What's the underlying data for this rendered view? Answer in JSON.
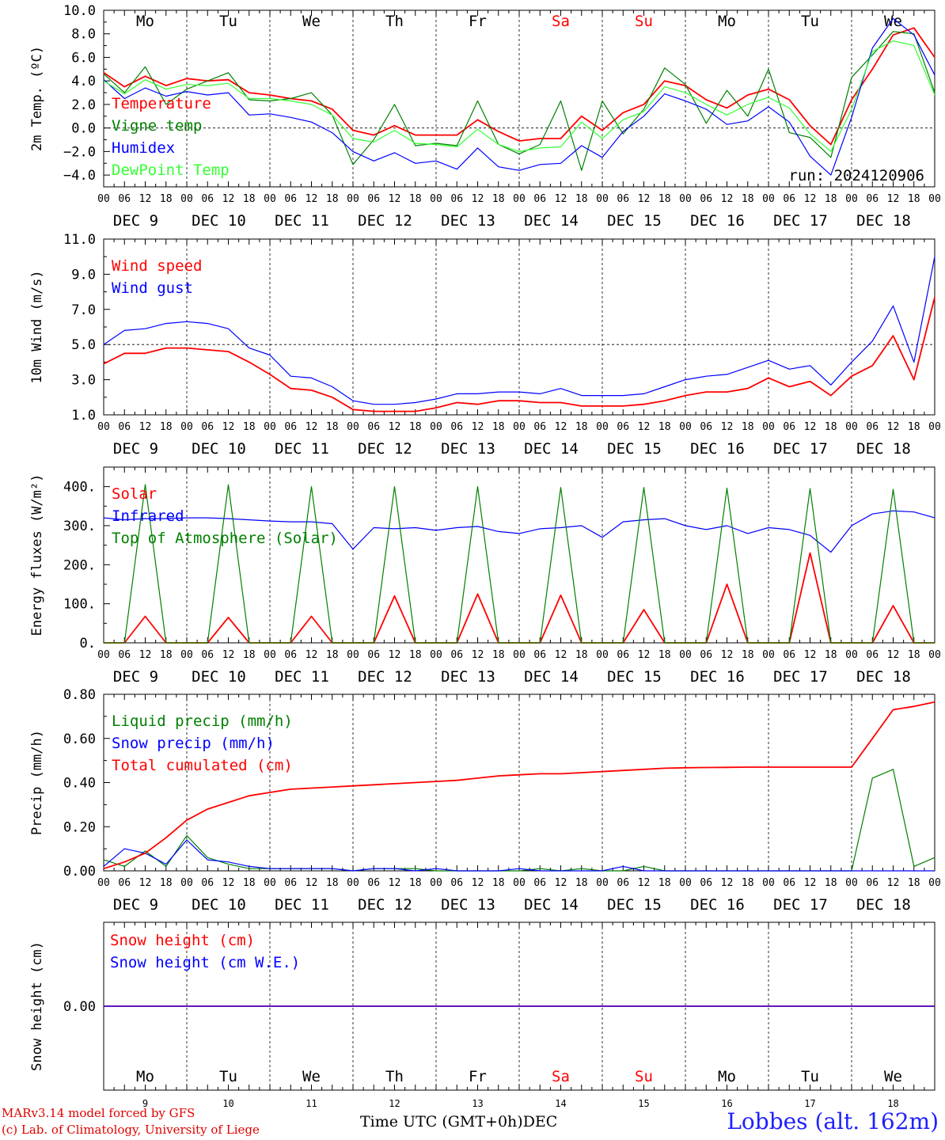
{
  "page": {
    "credit_line1": "MARv3.14 model forced by GFS",
    "credit_line2": "(c) Lab. of Climatology, University of Liege",
    "time_axis_label": "Time UTC (GMT+0h)",
    "month_label": "DEC",
    "station": "Lobbes (alt. 162m)"
  },
  "colors": {
    "red": "#ff0000",
    "green": "#008000",
    "blue": "#0000ff",
    "light_green": "#33ff33",
    "weekend": "#ff0000",
    "text": "#000000"
  },
  "time_axis": {
    "days": [
      "DEC  9",
      "DEC 10",
      "DEC 11",
      "DEC 12",
      "DEC 13",
      "DEC 14",
      "DEC 15",
      "DEC 16",
      "DEC 17",
      "DEC 18"
    ],
    "hour_ticks": [
      "00",
      "06",
      "12",
      "18"
    ],
    "end_tick": "00",
    "weekdays": [
      "Mo",
      "Tu",
      "We",
      "Th",
      "Fr",
      "Sa",
      "Su",
      "Mo",
      "Tu",
      "We"
    ],
    "weekend_flags": [
      false,
      false,
      false,
      false,
      false,
      true,
      true,
      false,
      false,
      false
    ],
    "day_numbers": [
      "9",
      "10",
      "11",
      "12",
      "13",
      "14",
      "15",
      "16",
      "17",
      "18"
    ]
  },
  "chart_data": [
    {
      "type": "line",
      "ylabel": "2m Temp. (ºC)",
      "ylim": [
        -5,
        10
      ],
      "yticks": [
        "10.0",
        "8.0",
        "6.0",
        "4.0",
        "2.0",
        "0.0",
        "−2.0",
        "−4.0"
      ],
      "ytick_values": [
        10,
        8,
        6,
        4,
        2,
        0,
        -2,
        -4
      ],
      "ref_line": 0,
      "run_label": "run: 2024120906",
      "x_hours": [
        0,
        6,
        12,
        18,
        24,
        30,
        36,
        42,
        48,
        54,
        60,
        66,
        72,
        78,
        84,
        90,
        96,
        102,
        108,
        114,
        120,
        126,
        132,
        138,
        144,
        150,
        156,
        162,
        168,
        174,
        180,
        186,
        192,
        198,
        204,
        210,
        216,
        222,
        228,
        234,
        240
      ],
      "series": [
        {
          "name": "Temperature",
          "color": "red",
          "values": [
            4.7,
            3.5,
            4.4,
            3.6,
            4.2,
            4.0,
            4.1,
            3.0,
            2.8,
            2.5,
            2.3,
            1.6,
            -0.2,
            -0.6,
            0.2,
            -0.6,
            -0.6,
            -0.6,
            0.7,
            -0.3,
            -1.1,
            -0.9,
            -0.9,
            1.0,
            -0.2,
            1.3,
            2.0,
            4.0,
            3.6,
            2.4,
            1.7,
            2.8,
            3.3,
            2.4,
            0.2,
            -1.4,
            2.4,
            5.0,
            7.9,
            8.5,
            6.0
          ]
        },
        {
          "name": "Vigne temp",
          "color": "green",
          "values": [
            4.6,
            3.0,
            5.2,
            2.0,
            3.3,
            4.0,
            4.7,
            2.4,
            2.3,
            2.5,
            3.0,
            1.1,
            -3.1,
            -1.0,
            2.0,
            -1.5,
            -1.3,
            -1.5,
            2.3,
            -1.4,
            -2.2,
            -1.4,
            2.3,
            -3.6,
            2.3,
            -0.5,
            1.6,
            5.1,
            3.7,
            0.4,
            3.2,
            1.0,
            5.0,
            -0.4,
            -0.8,
            -2.5,
            4.3,
            6.2,
            8.2,
            8.0,
            3.0
          ]
        },
        {
          "name": "Humidex",
          "color": "blue",
          "values": [
            4.1,
            2.5,
            3.4,
            2.7,
            3.1,
            2.8,
            3.0,
            1.1,
            1.2,
            0.9,
            0.5,
            -0.4,
            -2.0,
            -2.8,
            -2.1,
            -3.0,
            -2.8,
            -3.5,
            -1.7,
            -3.3,
            -3.6,
            -3.1,
            -3.0,
            -1.5,
            -2.5,
            -0.3,
            1.0,
            2.9,
            2.3,
            1.6,
            0.3,
            0.6,
            1.8,
            0.5,
            -2.4,
            -4.0,
            0.9,
            6.8,
            9.3,
            7.9,
            4.5
          ]
        },
        {
          "name": "DewPoint Temp",
          "color": "light_green",
          "values": [
            4.0,
            2.9,
            4.1,
            3.3,
            3.7,
            3.6,
            3.8,
            2.5,
            2.5,
            2.3,
            2.0,
            1.1,
            -0.9,
            -1.2,
            -0.2,
            -1.3,
            -1.4,
            -1.6,
            -0.1,
            -1.4,
            -2.0,
            -1.7,
            -1.6,
            0.5,
            -0.9,
            0.7,
            1.4,
            3.5,
            3.0,
            2.0,
            1.1,
            2.0,
            2.6,
            1.7,
            -0.5,
            -2.0,
            1.6,
            6.5,
            7.4,
            7.0,
            2.8
          ]
        }
      ]
    },
    {
      "type": "line",
      "ylabel": "10m Wind (m/s)",
      "ylim": [
        1,
        11
      ],
      "yticks": [
        "11.0",
        "9.0",
        "7.0",
        "5.0",
        "3.0",
        "1.0"
      ],
      "ytick_values": [
        11,
        9,
        7,
        5,
        3,
        1
      ],
      "ref_line": 5,
      "x_hours": [
        0,
        6,
        12,
        18,
        24,
        30,
        36,
        42,
        48,
        54,
        60,
        66,
        72,
        78,
        84,
        90,
        96,
        102,
        108,
        114,
        120,
        126,
        132,
        138,
        144,
        150,
        156,
        162,
        168,
        174,
        180,
        186,
        192,
        198,
        204,
        210,
        216,
        222,
        228,
        234,
        240
      ],
      "series": [
        {
          "name": "Wind speed",
          "color": "red",
          "values": [
            3.9,
            4.5,
            4.5,
            4.8,
            4.8,
            4.7,
            4.6,
            4.0,
            3.3,
            2.5,
            2.4,
            2.0,
            1.3,
            1.2,
            1.2,
            1.2,
            1.4,
            1.7,
            1.6,
            1.8,
            1.8,
            1.7,
            1.7,
            1.5,
            1.5,
            1.5,
            1.6,
            1.8,
            2.1,
            2.3,
            2.3,
            2.5,
            3.1,
            2.6,
            2.9,
            2.1,
            3.2,
            3.8,
            5.5,
            3.0,
            7.7
          ]
        },
        {
          "name": "Wind gust",
          "color": "blue",
          "values": [
            5.0,
            5.8,
            5.9,
            6.2,
            6.3,
            6.2,
            5.9,
            4.8,
            4.4,
            3.2,
            3.1,
            2.6,
            1.8,
            1.6,
            1.6,
            1.7,
            1.9,
            2.2,
            2.2,
            2.3,
            2.3,
            2.2,
            2.5,
            2.1,
            2.1,
            2.1,
            2.2,
            2.6,
            3.0,
            3.2,
            3.3,
            3.7,
            4.1,
            3.6,
            3.8,
            2.7,
            4.0,
            5.2,
            7.2,
            4.0,
            10.0
          ]
        }
      ]
    },
    {
      "type": "line",
      "ylabel": "Energy fluxes (W/m²)",
      "ylim": [
        0,
        450
      ],
      "yticks": [
        "400.",
        "300.",
        "200.",
        "100.",
        "0."
      ],
      "ytick_values": [
        400,
        300,
        200,
        100,
        0
      ],
      "x_hours": [
        0,
        6,
        12,
        18,
        24,
        30,
        36,
        42,
        48,
        54,
        60,
        66,
        72,
        78,
        84,
        90,
        96,
        102,
        108,
        114,
        120,
        126,
        132,
        138,
        144,
        150,
        156,
        162,
        168,
        174,
        180,
        186,
        192,
        198,
        204,
        210,
        216,
        222,
        228,
        234,
        240
      ],
      "series": [
        {
          "name": "Solar",
          "color": "red",
          "values": [
            0,
            0,
            68,
            0,
            0,
            0,
            65,
            0,
            0,
            0,
            68,
            0,
            0,
            0,
            120,
            0,
            0,
            0,
            125,
            0,
            0,
            0,
            122,
            0,
            0,
            0,
            85,
            0,
            0,
            0,
            150,
            0,
            0,
            0,
            230,
            0,
            0,
            0,
            95,
            0,
            0
          ]
        },
        {
          "name": "Infrared",
          "color": "blue",
          "values": [
            320,
            315,
            318,
            318,
            320,
            320,
            318,
            315,
            312,
            310,
            310,
            305,
            240,
            295,
            292,
            295,
            288,
            295,
            298,
            285,
            280,
            292,
            295,
            300,
            270,
            310,
            315,
            318,
            300,
            290,
            300,
            280,
            295,
            290,
            275,
            232,
            300,
            330,
            338,
            335,
            320
          ]
        },
        {
          "name": "Top of Atmosphere (Solar)",
          "color": "green",
          "values": [
            0,
            0,
            405,
            0,
            0,
            0,
            405,
            0,
            0,
            0,
            400,
            0,
            0,
            0,
            400,
            0,
            0,
            0,
            400,
            0,
            0,
            0,
            398,
            0,
            0,
            0,
            398,
            0,
            0,
            0,
            396,
            0,
            0,
            0,
            395,
            0,
            0,
            0,
            393,
            0,
            0
          ]
        }
      ]
    },
    {
      "type": "line",
      "ylabel": "Precip (mm/h)",
      "ylim": [
        0,
        0.8
      ],
      "yticks": [
        "0.80",
        "0.60",
        "0.40",
        "0.20",
        "0.00"
      ],
      "ytick_values": [
        0.8,
        0.6,
        0.4,
        0.2,
        0.0
      ],
      "x_hours": [
        0,
        6,
        12,
        18,
        24,
        30,
        36,
        42,
        48,
        54,
        60,
        66,
        72,
        78,
        84,
        90,
        96,
        102,
        108,
        114,
        120,
        126,
        132,
        138,
        144,
        150,
        156,
        162,
        168,
        174,
        180,
        186,
        192,
        198,
        204,
        210,
        216,
        222,
        228,
        234,
        240
      ],
      "series": [
        {
          "name": "Liquid precip (mm/h)",
          "color": "green",
          "values": [
            0.05,
            0.02,
            0.09,
            0.02,
            0.16,
            0.06,
            0.03,
            0.01,
            0.01,
            0.01,
            0.01,
            0.01,
            0.0,
            0.01,
            0.01,
            0.01,
            0.0,
            0.0,
            0.0,
            0.0,
            0.0,
            0.01,
            0.0,
            0.01,
            0.0,
            0.0,
            0.02,
            0.0,
            0.0,
            0.0,
            0.0,
            0.0,
            0.0,
            0.0,
            0.0,
            0.0,
            0.0,
            0.42,
            0.46,
            0.02,
            0.06
          ]
        },
        {
          "name": "Snow precip (mm/h)",
          "color": "blue",
          "values": [
            0.02,
            0.1,
            0.08,
            0.03,
            0.14,
            0.05,
            0.04,
            0.02,
            0.01,
            0.01,
            0.01,
            0.01,
            0.0,
            0.01,
            0.01,
            0.0,
            0.01,
            0.0,
            0.0,
            0.0,
            0.01,
            0.0,
            0.0,
            0.0,
            0.0,
            0.02,
            0.0,
            0.0,
            0.0,
            0.0,
            0.0,
            0.0,
            0.0,
            0.0,
            0.0,
            0.0,
            0.0,
            0.0,
            0.0,
            0.0,
            0.0
          ]
        },
        {
          "name": "Total cumulated (cm)",
          "color": "red",
          "values": [
            0.01,
            0.04,
            0.08,
            0.15,
            0.23,
            0.28,
            0.31,
            0.34,
            0.355,
            0.37,
            0.375,
            0.38,
            0.385,
            0.39,
            0.395,
            0.4,
            0.405,
            0.41,
            0.42,
            0.43,
            0.435,
            0.44,
            0.44,
            0.445,
            0.45,
            0.455,
            0.46,
            0.465,
            0.467,
            0.468,
            0.469,
            0.47,
            0.47,
            0.47,
            0.47,
            0.47,
            0.47,
            0.6,
            0.73,
            0.745,
            0.765
          ]
        }
      ]
    },
    {
      "type": "line",
      "ylabel": "Snow height (cm)",
      "ylim": [
        -1,
        1
      ],
      "yticks": [
        "0.00"
      ],
      "ytick_values": [
        0
      ],
      "x_hours": [
        0,
        240
      ],
      "series": [
        {
          "name": "Snow height (cm)",
          "color": "red",
          "values": [
            0,
            0
          ]
        },
        {
          "name": "Snow height (cm W.E.)",
          "color": "blue",
          "values": [
            0,
            0
          ]
        }
      ]
    }
  ]
}
